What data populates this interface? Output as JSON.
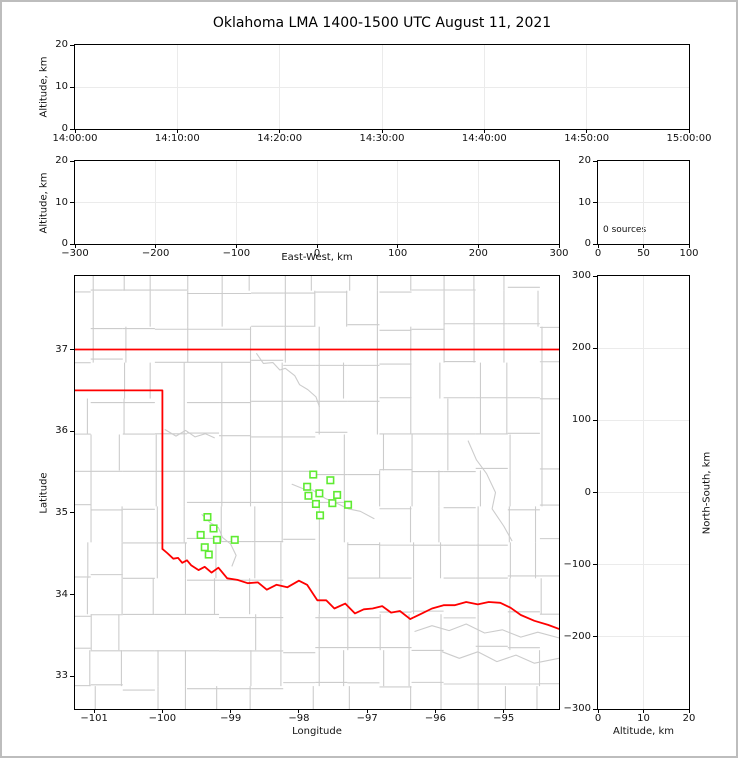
{
  "title": "Oklahoma LMA 1400-1500 UTC August 11, 2021",
  "colors": {
    "station_marker": "#5FEB32",
    "state_border": "#FF0000",
    "county_border": "#CCCCCC",
    "gridline": "#EBEBEB",
    "axis": "#000000",
    "figure_frame": "#BDBDBD"
  },
  "panels": {
    "time_height": {
      "ylabel": "Altitude, km",
      "xlim": [
        0,
        60
      ],
      "ylim": [
        0,
        20
      ],
      "xticks": [
        0,
        10,
        20,
        30,
        40,
        50,
        60
      ],
      "xticklabels": [
        "14:00:00",
        "14:10:00",
        "14:20:00",
        "14:30:00",
        "14:40:00",
        "14:50:00",
        "15:00:00"
      ],
      "yticks": [
        0,
        10,
        20
      ],
      "grid": true
    },
    "ew_height": {
      "ylabel": "Altitude, km",
      "xlabel": "East-West, km",
      "xlim": [
        -300,
        300
      ],
      "ylim": [
        0,
        20
      ],
      "xticks": [
        -300,
        -200,
        -100,
        0,
        100,
        200,
        300
      ],
      "yticks": [
        0,
        10,
        20
      ],
      "grid": true
    },
    "src_hist": {
      "annotation": "0 sources",
      "xlim": [
        0,
        100
      ],
      "ylim": [
        0,
        20
      ],
      "xticks": [
        0,
        50,
        100
      ],
      "yticks": [
        0,
        10,
        20
      ],
      "grid": true
    },
    "plan_view": {
      "xlabel": "Longitude",
      "ylabel": "Latitude",
      "xlim": [
        -101.28,
        -94.19
      ],
      "ylim": [
        32.6,
        37.9
      ],
      "xticks": [
        -101,
        -100,
        -99,
        -98,
        -97,
        -96,
        -95
      ],
      "yticks": [
        33,
        34,
        35,
        36,
        37
      ],
      "grid": false
    },
    "ns_height": {
      "xlabel": "Altitude, km",
      "ylabel": "North-South, km",
      "xlim": [
        0,
        20
      ],
      "ylim": [
        -300,
        300
      ],
      "xticks": [
        0,
        10,
        20
      ],
      "yticks": [
        -300,
        -200,
        -100,
        0,
        100,
        200,
        300
      ],
      "grid": true
    }
  },
  "chart_data": {
    "type": "scatter",
    "title": "Oklahoma LMA 1400-1500 UTC August 11, 2021",
    "source_count": 0,
    "notes": "All altitude/time panels are empty (0 lightning sources); plan view shows LMA station locations as green squares over an Oklahoma county basemap",
    "stations_lon_lat": [
      [
        -97.79,
        35.47
      ],
      [
        -97.54,
        35.4
      ],
      [
        -97.88,
        35.32
      ],
      [
        -97.7,
        35.24
      ],
      [
        -97.86,
        35.21
      ],
      [
        -97.44,
        35.22
      ],
      [
        -97.75,
        35.11
      ],
      [
        -97.51,
        35.12
      ],
      [
        -97.28,
        35.1
      ],
      [
        -97.69,
        34.97
      ],
      [
        -99.34,
        34.95
      ],
      [
        -99.25,
        34.81
      ],
      [
        -99.44,
        34.73
      ],
      [
        -99.2,
        34.67
      ],
      [
        -98.94,
        34.67
      ],
      [
        -99.38,
        34.58
      ],
      [
        -99.32,
        34.49
      ]
    ],
    "state_border_segments": [
      [
        [
          -101.28,
          37.0
        ],
        [
          -94.19,
          37.0
        ]
      ],
      [
        [
          -101.28,
          36.5
        ],
        [
          -100.0,
          36.5
        ],
        [
          -100.0,
          34.56
        ]
      ],
      [
        [
          -100.0,
          34.56
        ],
        [
          -99.93,
          34.51
        ],
        [
          -99.84,
          34.44
        ],
        [
          -99.77,
          34.45
        ],
        [
          -99.71,
          34.39
        ],
        [
          -99.64,
          34.42
        ],
        [
          -99.58,
          34.36
        ],
        [
          -99.47,
          34.3
        ],
        [
          -99.38,
          34.34
        ],
        [
          -99.28,
          34.27
        ],
        [
          -99.18,
          34.33
        ],
        [
          -99.05,
          34.2
        ],
        [
          -98.9,
          34.18
        ],
        [
          -98.75,
          34.14
        ],
        [
          -98.6,
          34.15
        ],
        [
          -98.47,
          34.06
        ],
        [
          -98.33,
          34.12
        ],
        [
          -98.17,
          34.09
        ],
        [
          -98.0,
          34.17
        ],
        [
          -97.88,
          34.12
        ],
        [
          -97.73,
          33.93
        ],
        [
          -97.6,
          33.93
        ],
        [
          -97.48,
          33.83
        ],
        [
          -97.32,
          33.89
        ],
        [
          -97.18,
          33.77
        ],
        [
          -97.05,
          33.82
        ],
        [
          -96.92,
          33.83
        ],
        [
          -96.78,
          33.86
        ],
        [
          -96.65,
          33.78
        ],
        [
          -96.52,
          33.8
        ],
        [
          -96.37,
          33.7
        ],
        [
          -96.22,
          33.76
        ],
        [
          -96.05,
          33.83
        ],
        [
          -95.88,
          33.87
        ],
        [
          -95.72,
          33.87
        ],
        [
          -95.55,
          33.91
        ],
        [
          -95.38,
          33.88
        ],
        [
          -95.22,
          33.91
        ],
        [
          -95.05,
          33.9
        ],
        [
          -94.9,
          33.84
        ],
        [
          -94.75,
          33.75
        ],
        [
          -94.55,
          33.68
        ],
        [
          -94.35,
          33.63
        ],
        [
          -94.19,
          33.58
        ]
      ]
    ],
    "county_rivers": [
      [
        [
          -98.62,
          36.95
        ],
        [
          -98.52,
          36.83
        ],
        [
          -98.38,
          36.84
        ],
        [
          -98.28,
          36.75
        ],
        [
          -98.2,
          36.77
        ],
        [
          -98.06,
          36.68
        ],
        [
          -97.99,
          36.57
        ],
        [
          -97.87,
          36.51
        ],
        [
          -97.75,
          36.42
        ],
        [
          -97.7,
          36.3
        ]
      ],
      [
        [
          -99.96,
          36.02
        ],
        [
          -99.8,
          35.94
        ],
        [
          -99.66,
          36.01
        ],
        [
          -99.52,
          35.93
        ],
        [
          -99.37,
          35.97
        ],
        [
          -99.24,
          35.92
        ]
      ],
      [
        [
          -95.52,
          35.88
        ],
        [
          -95.4,
          35.65
        ],
        [
          -95.25,
          35.48
        ],
        [
          -95.12,
          35.25
        ],
        [
          -95.17,
          35.05
        ],
        [
          -95.0,
          34.84
        ],
        [
          -94.88,
          34.66
        ]
      ],
      [
        [
          -96.3,
          33.55
        ],
        [
          -96.05,
          33.62
        ],
        [
          -95.8,
          33.56
        ],
        [
          -95.55,
          33.64
        ],
        [
          -95.28,
          33.53
        ],
        [
          -95.02,
          33.57
        ],
        [
          -94.75,
          33.48
        ],
        [
          -94.5,
          33.54
        ],
        [
          -94.19,
          33.47
        ]
      ],
      [
        [
          -95.9,
          33.3
        ],
        [
          -95.65,
          33.22
        ],
        [
          -95.38,
          33.3
        ],
        [
          -95.1,
          33.18
        ],
        [
          -94.82,
          33.26
        ],
        [
          -94.55,
          33.16
        ],
        [
          -94.19,
          33.22
        ]
      ],
      [
        [
          -99.42,
          34.98
        ],
        [
          -99.3,
          34.88
        ],
        [
          -99.18,
          34.82
        ],
        [
          -99.12,
          34.7
        ],
        [
          -99.0,
          34.62
        ],
        [
          -98.92,
          34.48
        ],
        [
          -98.98,
          34.35
        ]
      ],
      [
        [
          -98.1,
          35.35
        ],
        [
          -97.95,
          35.3
        ],
        [
          -97.8,
          35.28
        ],
        [
          -97.62,
          35.18
        ],
        [
          -97.45,
          35.12
        ],
        [
          -97.28,
          35.05
        ],
        [
          -97.1,
          35.02
        ],
        [
          -96.9,
          34.93
        ]
      ]
    ],
    "county_grid": {
      "lon_start": -101.05,
      "lon_step": 0.47,
      "lat_start": 32.88,
      "lat_step": 0.44,
      "seed": 7
    }
  }
}
